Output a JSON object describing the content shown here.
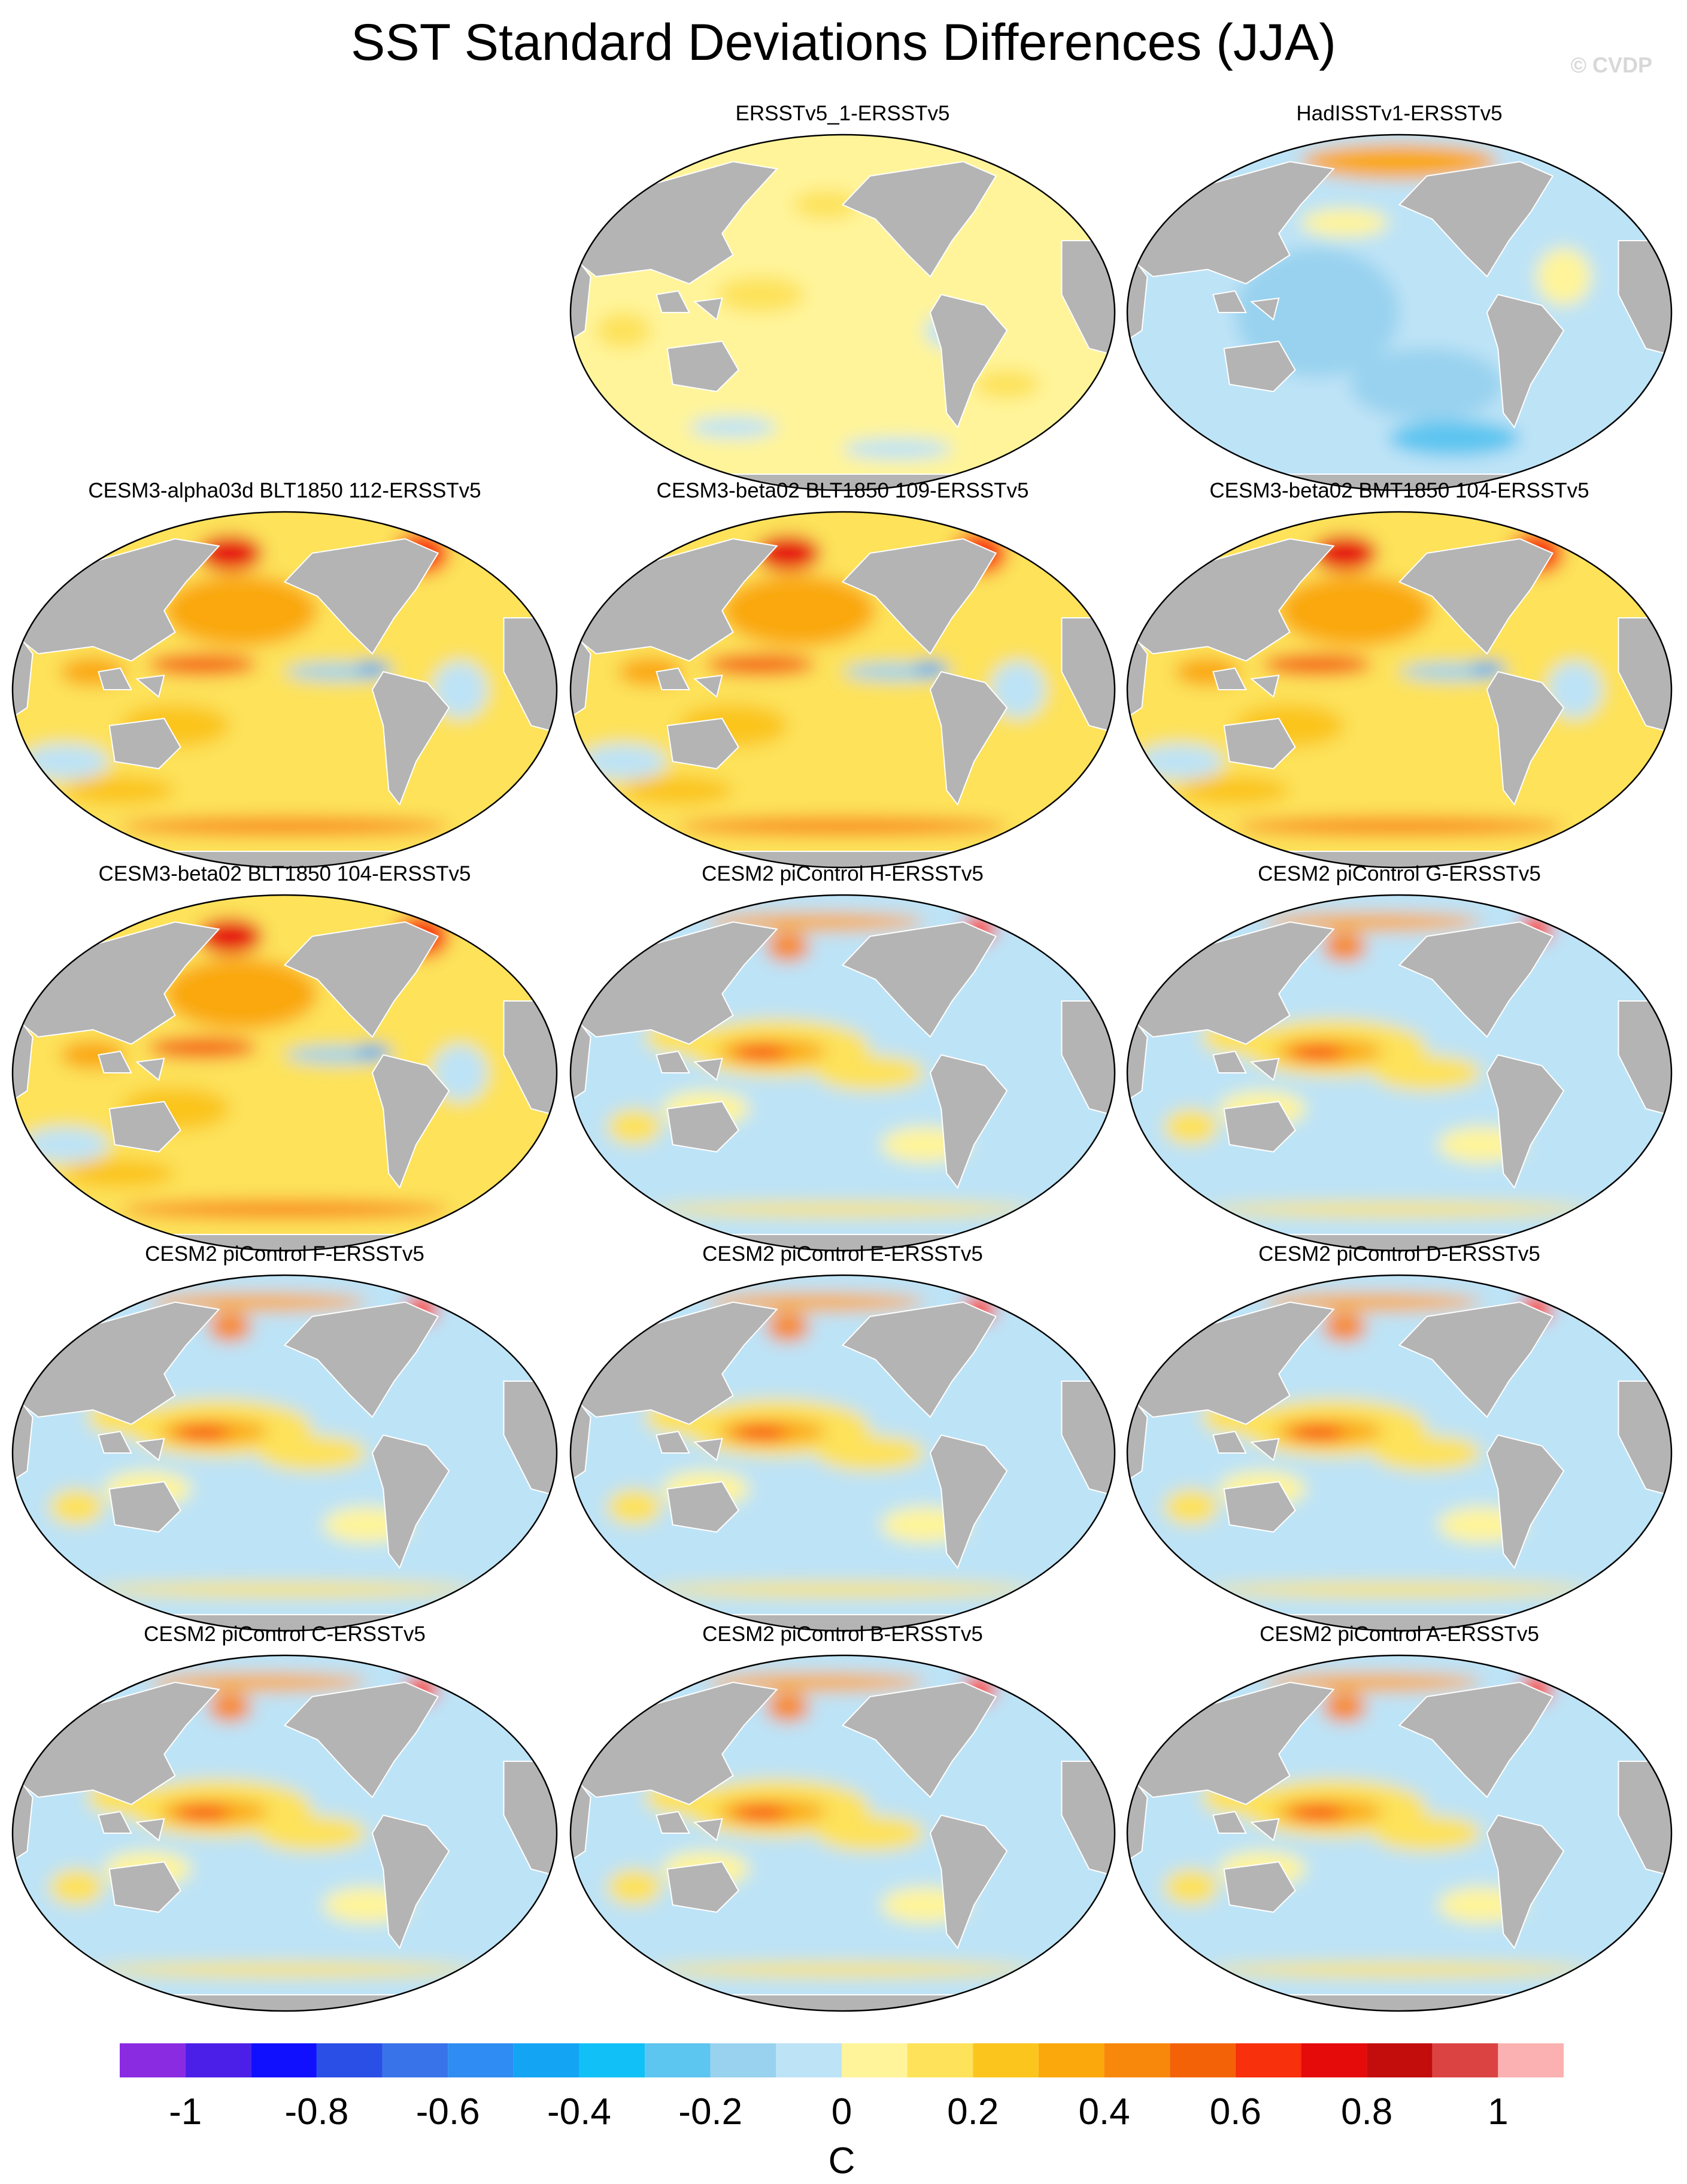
{
  "title": "SST Standard Deviations Differences (JJA)",
  "watermark": "© CVDP",
  "panels": [
    {
      "label": "ERSSTv5_1-ERSSTv5",
      "pattern": "near-zero"
    },
    {
      "label": "HadISSTv1-ERSSTv5",
      "pattern": "negative"
    },
    {
      "label": "CESM3-alpha03d BLT1850 112-ERSSTv5",
      "pattern": "cesm3"
    },
    {
      "label": "CESM3-beta02 BLT1850 109-ERSSTv5",
      "pattern": "cesm3"
    },
    {
      "label": "CESM3-beta02 BMT1850 104-ERSSTv5",
      "pattern": "cesm3"
    },
    {
      "label": "CESM3-beta02 BLT1850 104-ERSSTv5",
      "pattern": "cesm3"
    },
    {
      "label": "CESM2 piControl H-ERSSTv5",
      "pattern": "cesm2"
    },
    {
      "label": "CESM2 piControl G-ERSSTv5",
      "pattern": "cesm2"
    },
    {
      "label": "CESM2 piControl F-ERSSTv5",
      "pattern": "cesm2"
    },
    {
      "label": "CESM2 piControl E-ERSSTv5",
      "pattern": "cesm2"
    },
    {
      "label": "CESM2 piControl D-ERSSTv5",
      "pattern": "cesm2"
    },
    {
      "label": "CESM2 piControl C-ERSSTv5",
      "pattern": "cesm2"
    },
    {
      "label": "CESM2 piControl B-ERSSTv5",
      "pattern": "cesm2"
    },
    {
      "label": "CESM2 piControl A-ERSSTv5",
      "pattern": "cesm2"
    }
  ],
  "colorbar": {
    "colors": [
      "#8a2be2",
      "#4b1fe8",
      "#1010ff",
      "#2a4fe6",
      "#3873ea",
      "#2e8cf2",
      "#13a5f4",
      "#12c0f8",
      "#5cc5f0",
      "#98d2ef",
      "#bde3f6",
      "#fff49a",
      "#fde25a",
      "#fbc51d",
      "#faa80b",
      "#f8880c",
      "#f46208",
      "#f8300c",
      "#e60b0b",
      "#c30c0c",
      "#db4343",
      "#fbb1b1"
    ],
    "tick_labels": [
      "-1",
      "-0.8",
      "-0.6",
      "-0.4",
      "-0.2",
      "0",
      "0.2",
      "0.4",
      "0.6",
      "0.8",
      "1"
    ],
    "units": "C"
  },
  "colors": {
    "land": "#b4b4b4",
    "coast": "#ffffff",
    "border": "#000000"
  }
}
